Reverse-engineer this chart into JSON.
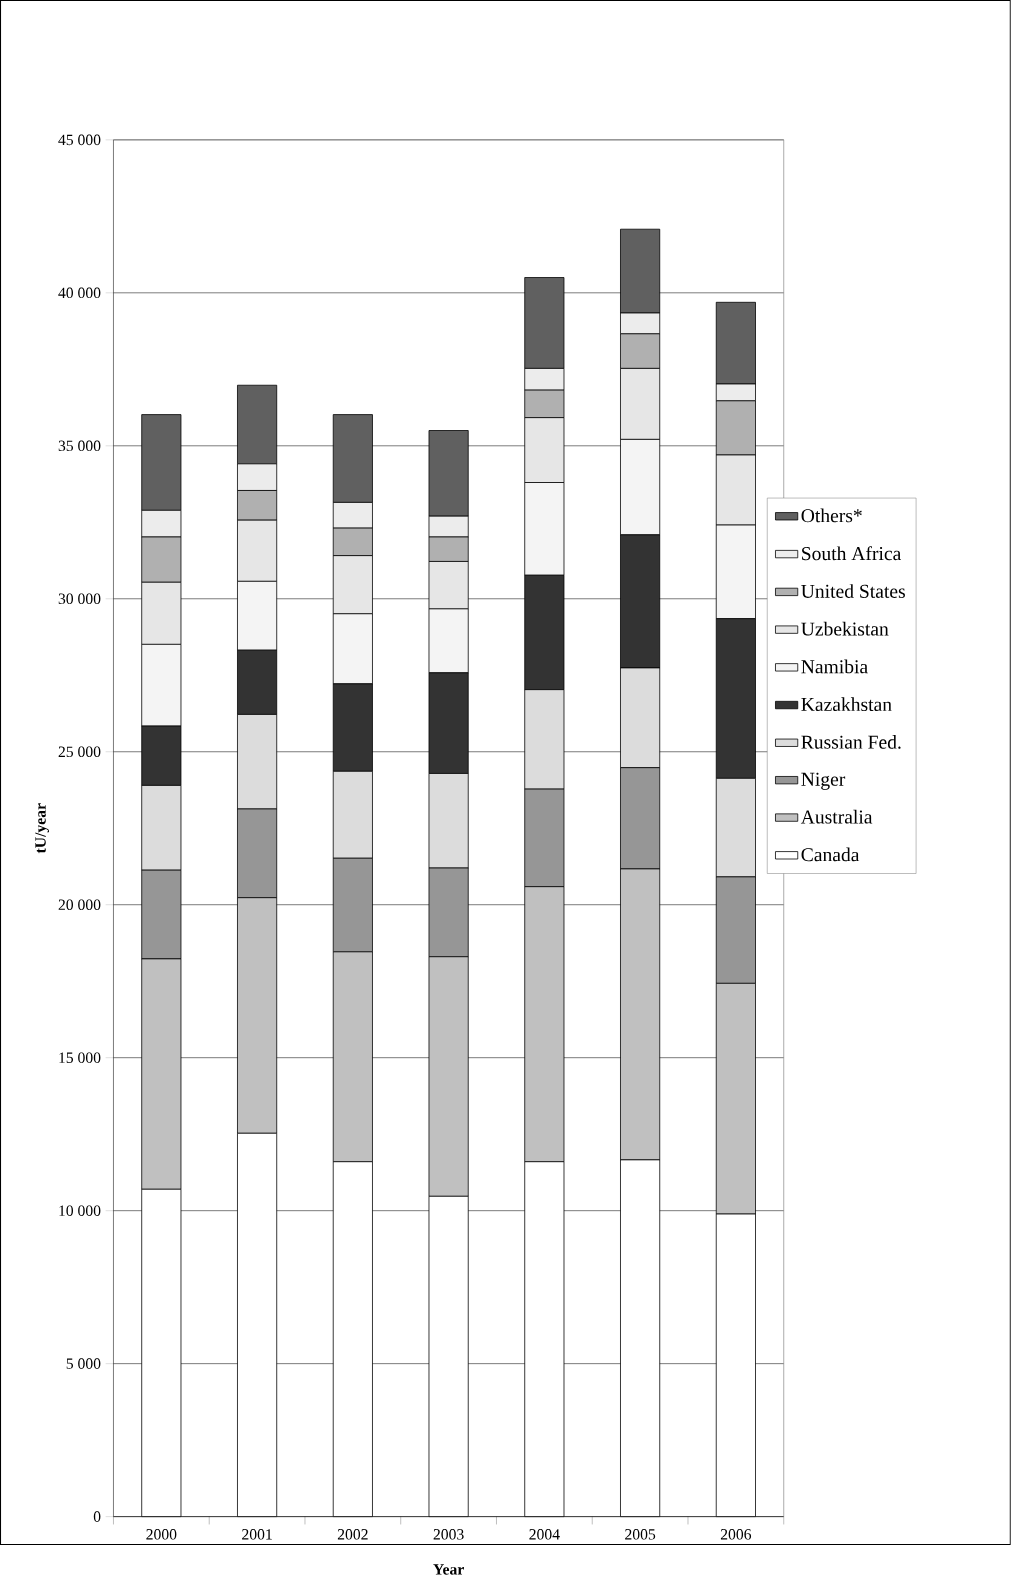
{
  "chart_data": {
    "type": "bar",
    "stacked": true,
    "xlabel": "Year",
    "ylabel": "tU/year",
    "categories": [
      "2000",
      "2001",
      "2002",
      "2003",
      "2004",
      "2005",
      "2006"
    ],
    "ylim": [
      0,
      45000
    ],
    "yticks": [
      0,
      {
        "value": 5000,
        "label": "5 000"
      },
      {
        "value": 10000,
        "label": "10 000"
      },
      {
        "value": 15000,
        "label": "15 000"
      },
      {
        "value": 20000,
        "label": "20 000"
      },
      {
        "value": 25000,
        "label": "25 000"
      },
      {
        "value": 30000,
        "label": "30 000"
      },
      {
        "value": 35000,
        "label": "35 000"
      },
      {
        "value": 40000,
        "label": "40 000"
      },
      {
        "value": 45000,
        "label": "45 000"
      }
    ],
    "grid": "y",
    "legend": "right",
    "series": [
      {
        "name": "Canada",
        "color": "#ffffff",
        "values": [
          10700,
          12530,
          11600,
          10470,
          11600,
          11660,
          9890
        ]
      },
      {
        "name": "Australia",
        "color": "#c0c0c0",
        "values": [
          7530,
          7700,
          6860,
          7830,
          8990,
          9510,
          7540
        ]
      },
      {
        "name": "Niger",
        "color": "#969696",
        "values": [
          2900,
          2900,
          3060,
          2900,
          3190,
          3310,
          3480
        ]
      },
      {
        "name": "Russian Fed.",
        "color": "#dcdcdc",
        "values": [
          2770,
          3090,
          2840,
          3090,
          3250,
          3260,
          3220
        ]
      },
      {
        "name": "Kazakhstan",
        "color": "#333333",
        "values": [
          1940,
          2100,
          2860,
          3290,
          3740,
          4350,
          5220
        ]
      },
      {
        "name": "Namibia",
        "color": "#f4f4f4",
        "values": [
          2670,
          2250,
          2290,
          2090,
          3030,
          3120,
          3060
        ]
      },
      {
        "name": "Uzbekistan",
        "color": "#e6e6e6",
        "values": [
          2030,
          2000,
          1900,
          1550,
          2120,
          2320,
          2290
        ]
      },
      {
        "name": "United States",
        "color": "#b0b0b0",
        "values": [
          1480,
          970,
          900,
          800,
          900,
          1130,
          1770
        ]
      },
      {
        "name": "South Africa",
        "color": "#ececec",
        "values": [
          870,
          870,
          840,
          680,
          710,
          680,
          550
        ]
      },
      {
        "name": "Others*",
        "color": "#606060",
        "values": [
          3130,
          2570,
          2870,
          2800,
          2970,
          2740,
          2670
        ]
      }
    ]
  }
}
